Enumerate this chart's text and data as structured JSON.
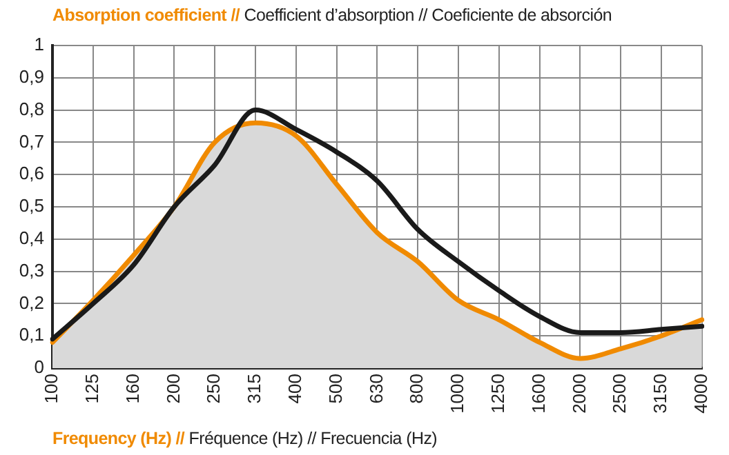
{
  "chart_data": {
    "type": "line",
    "title": "Absorption coefficient // Coefficient d’absorption // Coeficiente de absorción",
    "xlabel": "Frequency (Hz) // Fréquence (Hz) // Frecuencia (Hz)",
    "categories": [
      "100",
      "125",
      "160",
      "200",
      "250",
      "315",
      "400",
      "500",
      "630",
      "800",
      "1000",
      "1250",
      "1600",
      "2000",
      "2500",
      "3150",
      "4000"
    ],
    "series": [
      {
        "type": "area",
        "color": "#f08a00",
        "values": [
          0.08,
          0.21,
          0.35,
          0.5,
          0.7,
          0.76,
          0.72,
          0.57,
          0.42,
          0.33,
          0.21,
          0.15,
          0.08,
          0.03,
          0.06,
          0.1,
          0.15
        ]
      },
      {
        "type": "line",
        "color": "#1a1a1a",
        "values": [
          0.09,
          0.2,
          0.32,
          0.5,
          0.63,
          0.8,
          0.74,
          0.67,
          0.58,
          0.43,
          0.33,
          0.24,
          0.16,
          0.11,
          0.11,
          0.12,
          0.13
        ]
      }
    ],
    "ylim": [
      0,
      1
    ],
    "yticks": [
      0,
      {
        "value": 0.1,
        "label": "0,1"
      },
      {
        "value": 0.2,
        "label": "0,2"
      },
      {
        "value": 0.3,
        "label": "0,3"
      },
      {
        "value": 0.4,
        "label": "0,4"
      },
      {
        "value": 0.5,
        "label": "0,5"
      },
      {
        "value": 0.6,
        "label": "0,6"
      },
      {
        "value": 0.7,
        "label": "0,7"
      },
      {
        "value": 0.8,
        "label": "0,8"
      },
      {
        "value": 0.9,
        "label": "0,9"
      },
      1
    ],
    "grid": true,
    "legend": false
  }
}
